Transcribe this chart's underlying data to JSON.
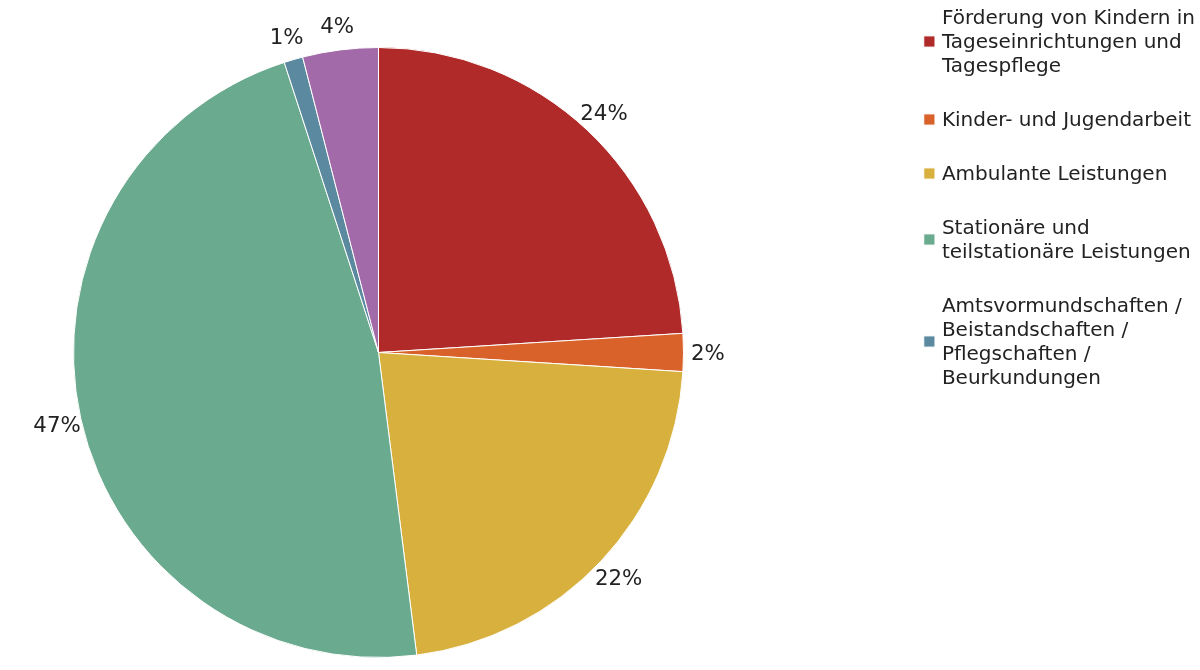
{
  "chart_data": {
    "type": "pie",
    "categories": [
      "Förderung von Kindern in Tageseinrichtungen und Tagespflege",
      "Kinder- und Jugendarbeit",
      "Ambulante Leistungen",
      "Stationäre und teilstationäre Leistungen",
      "Amtsvormundschaften / Beistandschaften / Pflegschaften / Beurkundungen",
      null
    ],
    "values": [
      24,
      2,
      22,
      47,
      1,
      4
    ],
    "colors": [
      "#b02a2a",
      "#d9622b",
      "#d8b03e",
      "#6aaa8e",
      "#5b8aa0",
      "#a26aa8"
    ],
    "value_labels": [
      "24%",
      "2%",
      "22%",
      "47%",
      "1%",
      "4%"
    ],
    "legend": "right"
  }
}
